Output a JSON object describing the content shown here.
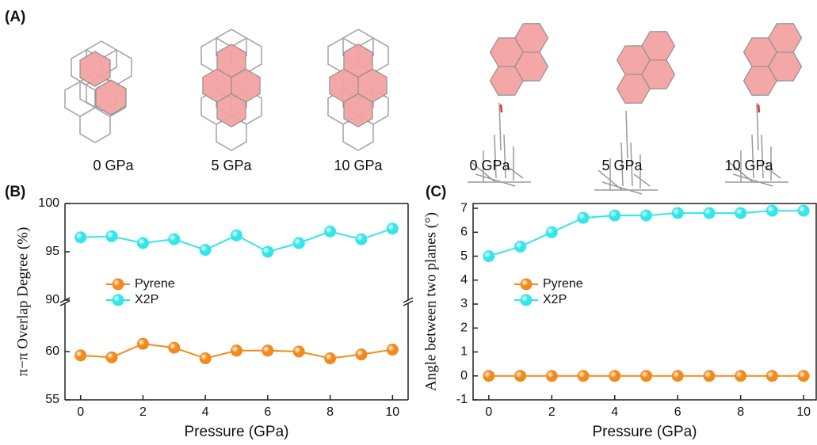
{
  "panel_a": {
    "label": "(A)",
    "captions": [
      "0 GPa",
      "5 GPa",
      "10 GPa",
      "0 GPa",
      "5 GPa",
      "10 GPa"
    ]
  },
  "chart_data": [
    {
      "type": "line",
      "panel_label": "(B)",
      "xlabel": "Pressure (GPa)",
      "ylabel": "π−π Overlap Degree (%)",
      "x": [
        0,
        1,
        2,
        3,
        4,
        5,
        6,
        7,
        8,
        9,
        10
      ],
      "series": [
        {
          "name": "Pyrene",
          "color": "#f28a1c",
          "values": [
            59.6,
            59.4,
            60.8,
            60.4,
            59.3,
            60.1,
            60.1,
            60.0,
            59.3,
            59.7,
            60.2
          ]
        },
        {
          "name": "X2P",
          "color": "#33e6ea",
          "values": [
            96.5,
            96.6,
            95.9,
            96.3,
            95.2,
            96.7,
            95.0,
            95.9,
            97.1,
            96.3,
            97.4
          ]
        }
      ],
      "xlim": [
        -0.5,
        10.5
      ],
      "xticks": [
        0,
        2,
        4,
        6,
        8,
        10
      ],
      "ylim": [
        55,
        100
      ],
      "yticks": [
        55,
        60,
        90,
        95,
        100
      ],
      "y_break": [
        65,
        90
      ],
      "legend": "center left"
    },
    {
      "type": "line",
      "panel_label": "(C)",
      "xlabel": "Pressure (GPa)",
      "ylabel": "Angle between two planes (°)",
      "x": [
        0,
        1,
        2,
        3,
        4,
        5,
        6,
        7,
        8,
        9,
        10
      ],
      "series": [
        {
          "name": "Pyrene",
          "color": "#f28a1c",
          "values": [
            0,
            0,
            0,
            0,
            0,
            0,
            0,
            0,
            0,
            0,
            0
          ]
        },
        {
          "name": "X2P",
          "color": "#33e6ea",
          "values": [
            5.0,
            5.4,
            6.0,
            6.6,
            6.7,
            6.7,
            6.8,
            6.8,
            6.8,
            6.9,
            6.9
          ]
        }
      ],
      "xlim": [
        -0.5,
        10.4
      ],
      "xticks": [
        0,
        2,
        4,
        6,
        8,
        10
      ],
      "ylim": [
        -1,
        7.2
      ],
      "yticks": [
        -1,
        0,
        1,
        2,
        3,
        4,
        5,
        6,
        7
      ],
      "legend": "center left"
    }
  ]
}
